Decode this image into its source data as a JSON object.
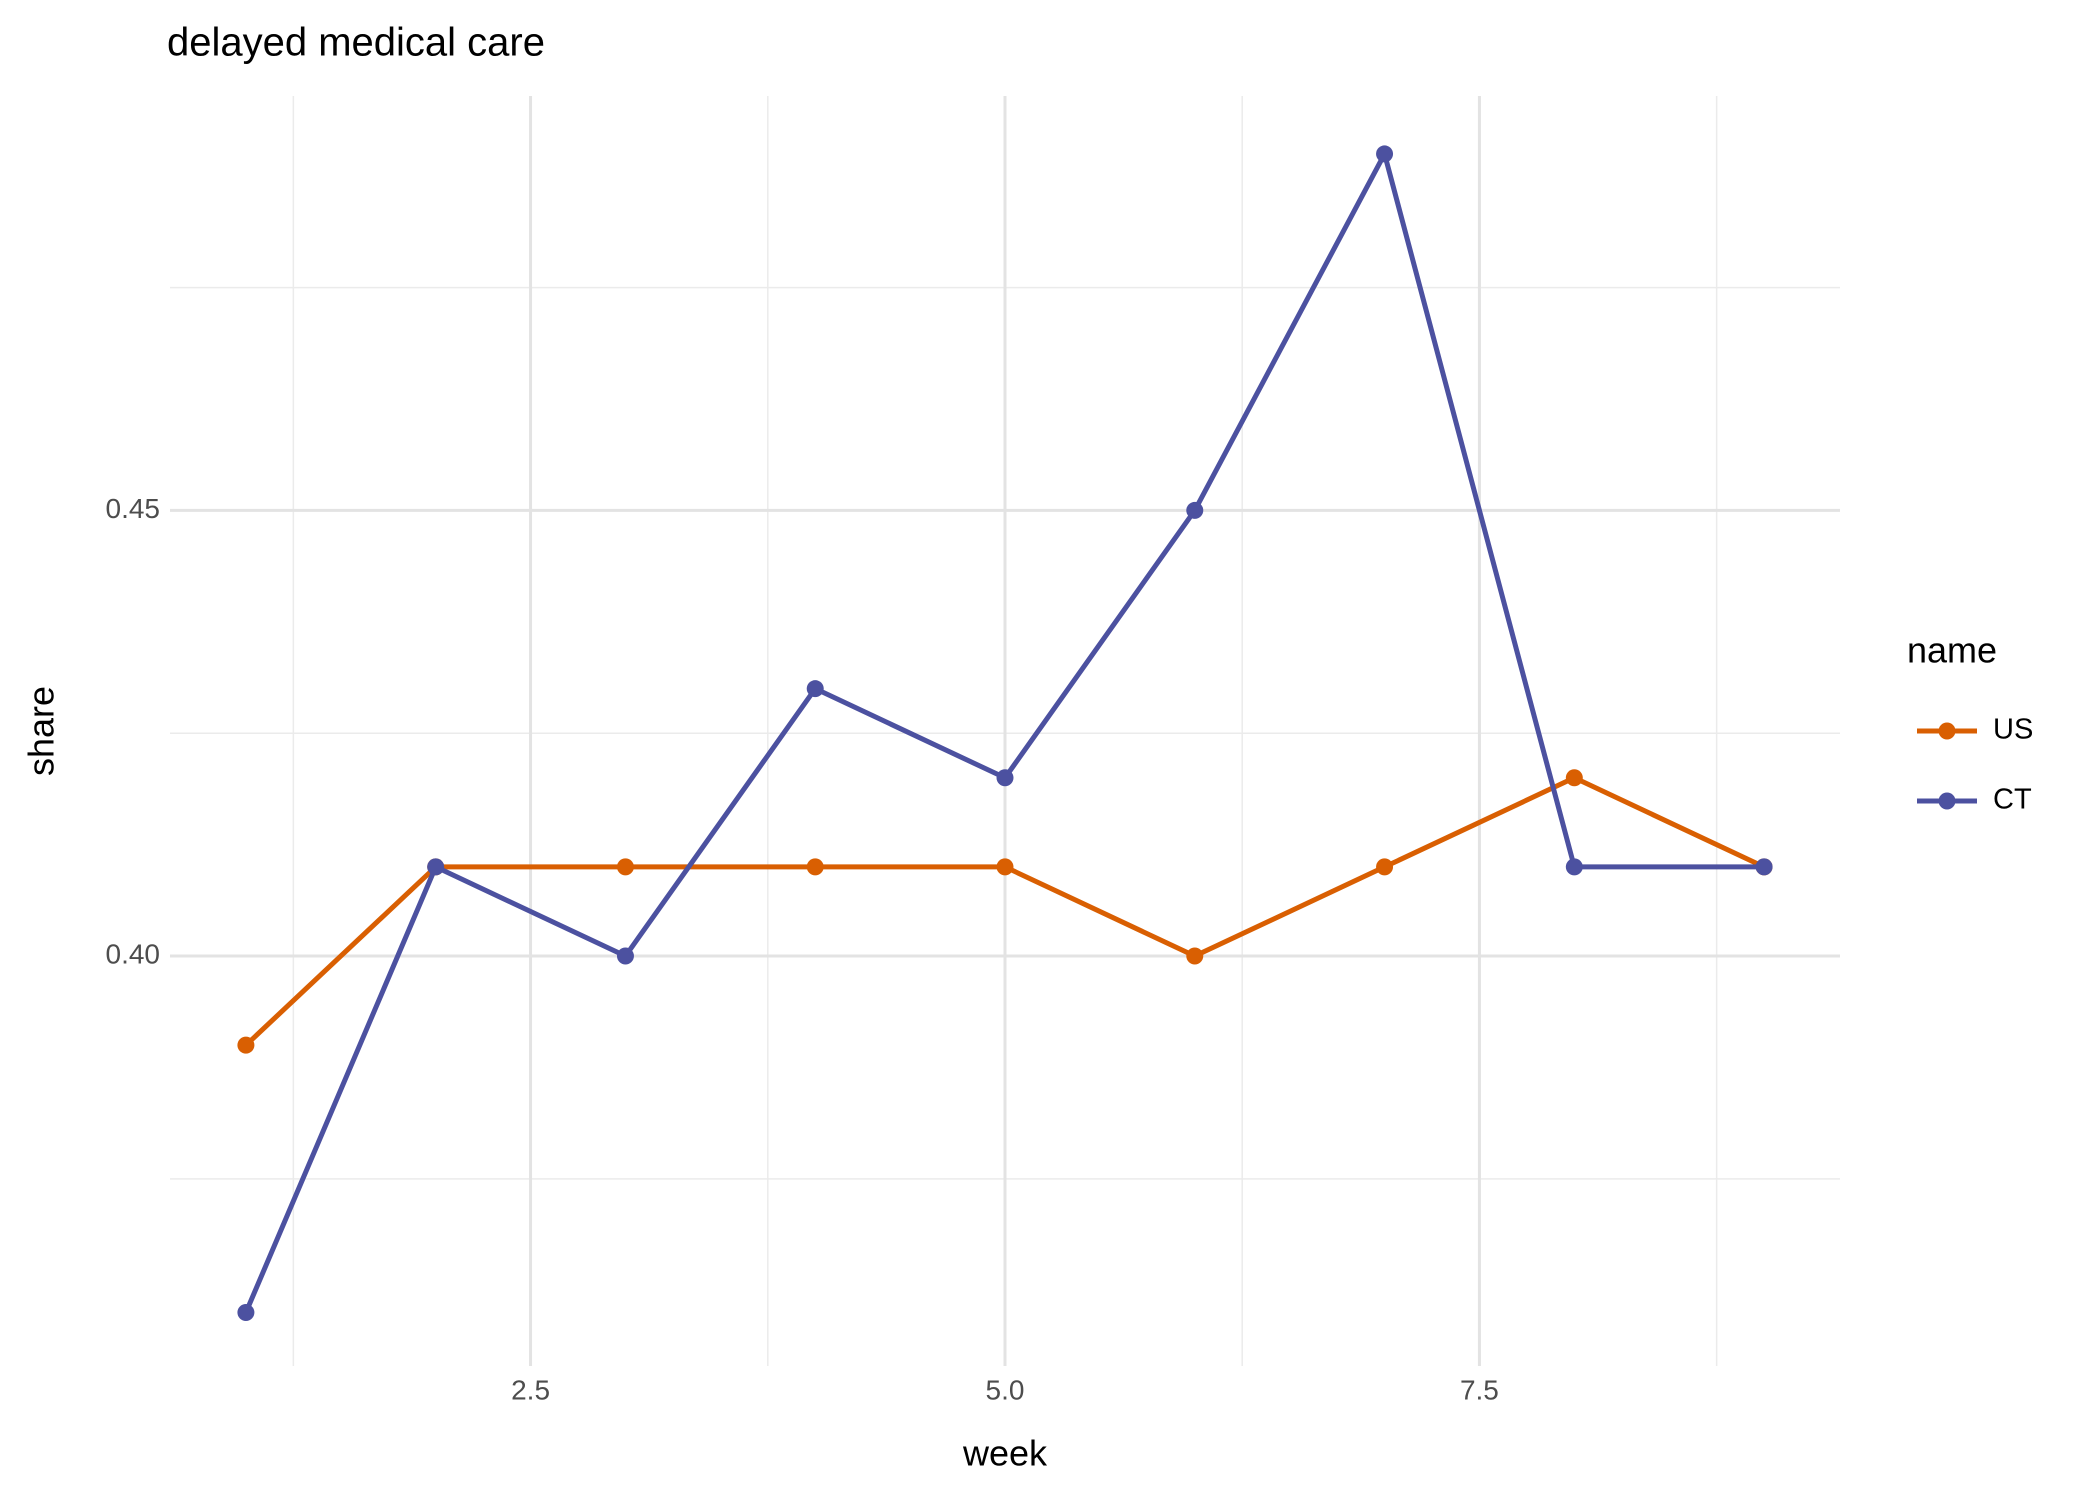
{
  "chart_data": {
    "type": "line",
    "title": "delayed medical care",
    "x_label": "week",
    "y_label": "share",
    "legend_title": "name",
    "x": [
      1,
      2,
      3,
      4,
      5,
      6,
      7,
      8,
      9
    ],
    "series": [
      {
        "name": "US",
        "color": "#d95f02",
        "values": [
          0.39,
          0.41,
          0.41,
          0.41,
          0.41,
          0.4,
          0.41,
          0.42,
          0.41
        ]
      },
      {
        "name": "CT",
        "color": "#4c51a0",
        "values": [
          0.36,
          0.41,
          0.4,
          0.43,
          0.42,
          0.45,
          0.49,
          0.41,
          0.41
        ]
      }
    ],
    "xlim": [
      0.6,
      9.4
    ],
    "xticks": [
      {
        "value": 2.5,
        "label": "2.5"
      },
      {
        "value": 5,
        "label": "5.0"
      },
      7.5
    ],
    "ylim": [
      0.354,
      0.4965
    ],
    "yticks": [
      {
        "value": 0.4,
        "label": "0.40"
      },
      0.45
    ],
    "grid": true,
    "minor_grid": true,
    "legend": "right"
  }
}
